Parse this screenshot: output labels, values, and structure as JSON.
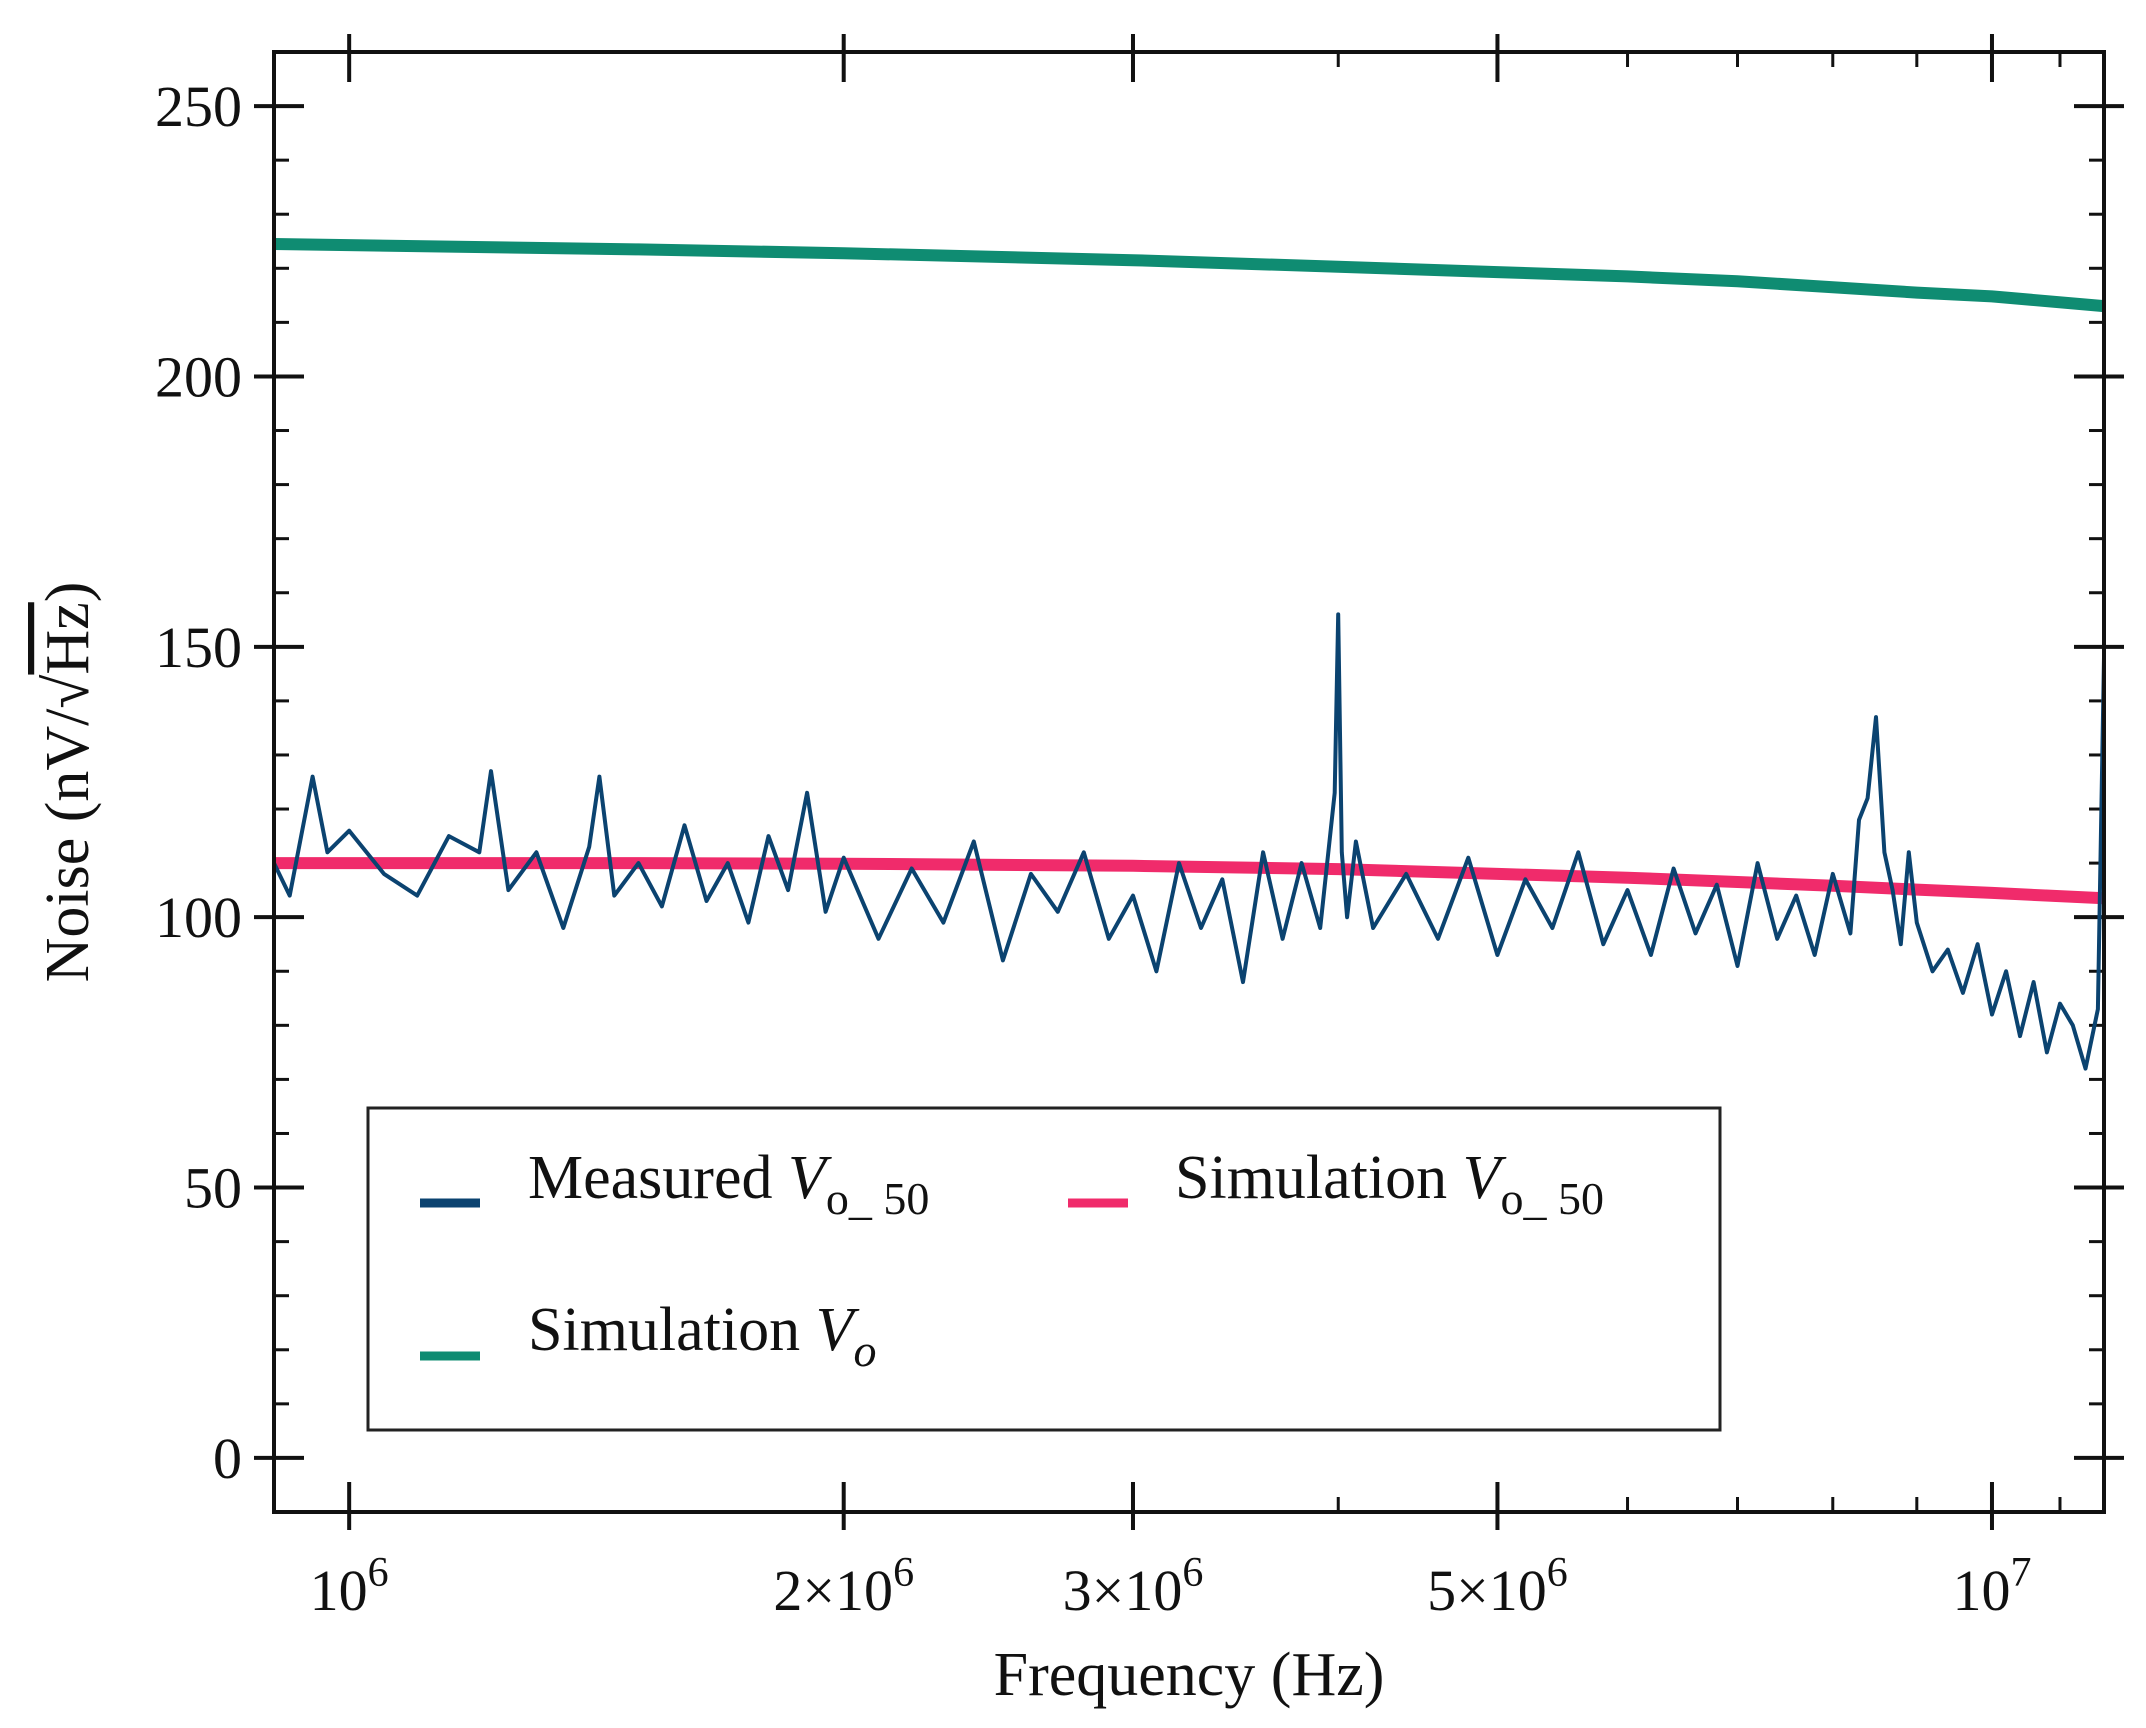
{
  "chart_data": {
    "type": "line",
    "title": "",
    "xlabel": "Frequency (Hz)",
    "ylabel": "Noise (nV/√Hz)",
    "ylabel_parts": {
      "prefix": "Noise (nV/",
      "root_symbol": "√",
      "radicand": "Hz",
      "suffix": ")"
    },
    "x_scale": "log",
    "xlim": [
      900000,
      11700000
    ],
    "ylim": [
      -10,
      260
    ],
    "yticks": [
      0,
      50,
      100,
      150,
      200,
      250
    ],
    "ytick_labels": [
      "0",
      "50",
      "100",
      "150",
      "200",
      "250"
    ],
    "xticks": [
      {
        "value": 1000000,
        "base": "10",
        "exp": "6"
      },
      {
        "value": 2000000,
        "base": "2×10",
        "exp": "6"
      },
      {
        "value": 3000000,
        "base": "3×10",
        "exp": "6"
      },
      {
        "value": 5000000,
        "base": "5×10",
        "exp": "6"
      },
      {
        "value": 10000000,
        "base": "10",
        "exp": "7"
      }
    ],
    "x_minor_ticks": [
      900000,
      4000000,
      6000000,
      7000000,
      8000000,
      9000000,
      11000000
    ],
    "y_minor_step": 10,
    "legend": {
      "placement": "lower-left",
      "entries": [
        {
          "series": "Measured V_o_50",
          "text": "Measured ",
          "var": "V",
          "sub": "o_ 50",
          "color": "#0b4370"
        },
        {
          "series": "Simulation V_o_50",
          "text": "Simulation ",
          "var": "V",
          "sub": "o_ 50",
          "color": "#f02b6b"
        },
        {
          "series": "Simulation V_o",
          "text": "Simulation ",
          "var": "V",
          "sub": "o",
          "color": "#0f8c72"
        }
      ]
    },
    "series": [
      {
        "name": "Simulation V_o",
        "color": "#0f8c72",
        "x": [
          900000,
          1500000,
          2000000,
          3000000,
          4000000,
          5000000,
          6000000,
          7000000,
          8000000,
          9000000,
          10000000,
          11700000
        ],
        "y": [
          224.5,
          223.5,
          222.8,
          221.5,
          220.3,
          219.3,
          218.5,
          217.6,
          216.5,
          215.5,
          214.8,
          213.0
        ]
      },
      {
        "name": "Simulation V_o_50",
        "color": "#f02b6b",
        "x": [
          900000,
          1500000,
          2000000,
          3000000,
          4000000,
          5000000,
          6000000,
          7000000,
          8000000,
          9000000,
          10000000,
          11700000
        ],
        "y": [
          110.0,
          110.0,
          109.9,
          109.5,
          108.9,
          108.0,
          107.3,
          106.5,
          105.8,
          105.1,
          104.5,
          103.5
        ]
      },
      {
        "name": "Measured V_o_50",
        "color": "#0b4370",
        "x": [
          900000,
          920000,
          950000,
          970000,
          1000000,
          1050000,
          1100000,
          1150000,
          1200000,
          1220000,
          1250000,
          1300000,
          1350000,
          1400000,
          1420000,
          1450000,
          1500000,
          1550000,
          1600000,
          1650000,
          1700000,
          1750000,
          1800000,
          1850000,
          1900000,
          1950000,
          2000000,
          2100000,
          2200000,
          2300000,
          2400000,
          2500000,
          2600000,
          2700000,
          2800000,
          2900000,
          3000000,
          3100000,
          3200000,
          3300000,
          3400000,
          3500000,
          3600000,
          3700000,
          3800000,
          3900000,
          3980000,
          4000000,
          4020000,
          4050000,
          4100000,
          4200000,
          4400000,
          4600000,
          4800000,
          5000000,
          5200000,
          5400000,
          5600000,
          5800000,
          6000000,
          6200000,
          6400000,
          6600000,
          6800000,
          7000000,
          7200000,
          7400000,
          7600000,
          7800000,
          8000000,
          8200000,
          8300000,
          8400000,
          8500000,
          8600000,
          8700000,
          8800000,
          8900000,
          9000000,
          9200000,
          9400000,
          9600000,
          9800000,
          10000000,
          10200000,
          10400000,
          10600000,
          10800000,
          11000000,
          11200000,
          11400000,
          11600000,
          11700000
        ],
        "y": [
          110,
          104,
          126,
          112,
          116,
          108,
          104,
          115,
          112,
          127,
          105,
          112,
          98,
          113,
          126,
          104,
          110,
          102,
          117,
          103,
          110,
          99,
          115,
          105,
          123,
          101,
          111,
          96,
          109,
          99,
          114,
          92,
          108,
          101,
          112,
          96,
          104,
          90,
          110,
          98,
          107,
          88,
          112,
          96,
          110,
          98,
          123,
          156,
          112,
          100,
          114,
          98,
          108,
          96,
          111,
          93,
          107,
          98,
          112,
          95,
          105,
          93,
          109,
          97,
          106,
          91,
          110,
          96,
          104,
          93,
          108,
          97,
          118,
          122,
          137,
          112,
          105,
          95,
          112,
          99,
          90,
          94,
          86,
          95,
          82,
          90,
          78,
          88,
          75,
          84,
          80,
          72,
          83,
          148
        ]
      }
    ]
  }
}
